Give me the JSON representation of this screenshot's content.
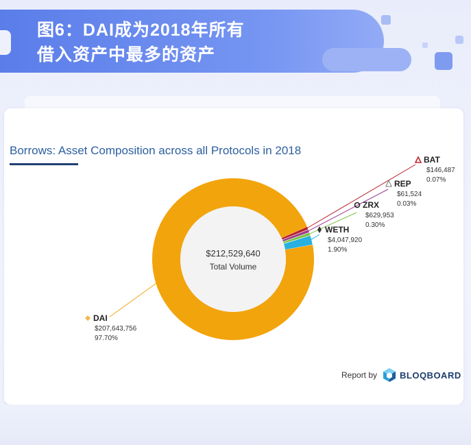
{
  "header": {
    "title_line1": "图6：DAI成为2018年所有",
    "title_line2": "借入资产中最多的资产"
  },
  "colors": {
    "banner": "#5a7de9",
    "title_text": "#2c5fa0",
    "center_fill": "#f3f3f3",
    "ring_shadow": "#d39410"
  },
  "chart_data": {
    "type": "pie",
    "title": "Borrows: Asset Composition across all Protocols in 2018",
    "center_value": "$212,529,640",
    "center_label": "Total Volume",
    "total": 212529640,
    "slices": [
      {
        "name": "DAI",
        "value": 207643756,
        "value_label": "$207,643,756",
        "pct_label": "97.70%",
        "pct": 97.7,
        "color": "#f2a40d",
        "icon": "diamond-icon"
      },
      {
        "name": "WETH",
        "value": 4047920,
        "value_label": "$4,047,920",
        "pct_label": "1.90%",
        "pct": 1.9,
        "color": "#27b0e0",
        "icon": "ethereum-icon"
      },
      {
        "name": "ZRX",
        "value": 629953,
        "value_label": "$629,953",
        "pct_label": "0.30%",
        "pct": 0.3,
        "color": "#7dc142",
        "icon": "zrx-icon"
      },
      {
        "name": "REP",
        "value": 61524,
        "value_label": "$61,524",
        "pct_label": "0.03%",
        "pct": 0.03,
        "color": "#9b3a8c",
        "icon": "augur-icon"
      },
      {
        "name": "BAT",
        "value": 146487,
        "value_label": "$146,487",
        "pct_label": "0.07%",
        "pct": 0.07,
        "color": "#b8202a",
        "icon": "bat-icon"
      }
    ]
  },
  "footer": {
    "report_by": "Report by",
    "brand": "BLOQBOARD"
  }
}
